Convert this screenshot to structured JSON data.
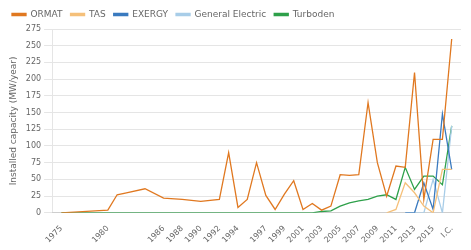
{
  "chart_data": {
    "type": "line",
    "ylabel": "Installed capacity (MW/year)",
    "series": [
      {
        "name": "ORMAT",
        "color": "#e07820",
        "x": [
          1975,
          1980,
          1981,
          1982,
          1984,
          1986,
          1988,
          1990,
          1992,
          1993,
          1994,
          1995,
          1996,
          1997,
          1998,
          1999,
          2000,
          2001,
          2002,
          2003,
          2004,
          2005,
          2006,
          2007,
          2008,
          2009,
          2010,
          2011,
          2012,
          2013,
          2014,
          2015,
          2016,
          2017
        ],
        "values": [
          0,
          4,
          27,
          30,
          36,
          22,
          20,
          17,
          20,
          90,
          8,
          20,
          75,
          26,
          5,
          28,
          48,
          5,
          14,
          4,
          10,
          57,
          56,
          57,
          165,
          75,
          25,
          70,
          68,
          210,
          20,
          110,
          110,
          260
        ]
      },
      {
        "name": "TAS",
        "color": "#f5c07a",
        "x": [
          2010,
          2011,
          2012,
          2013,
          2014,
          2015,
          2016,
          2017
        ],
        "values": [
          0,
          5,
          45,
          30,
          10,
          0,
          65,
          65
        ]
      },
      {
        "name": "EXERGY",
        "color": "#3a7abf",
        "x": [
          2012,
          2013,
          2014,
          2015,
          2016,
          2017
        ],
        "values": [
          0,
          0,
          45,
          5,
          148,
          65
        ]
      },
      {
        "name": "General Electric",
        "color": "#a8cde8",
        "x": [
          2012,
          2013,
          2014,
          2015,
          2016,
          2017
        ],
        "values": [
          0,
          0,
          0,
          50,
          0,
          130
        ]
      },
      {
        "name": "Turboden",
        "color": "#2ea04a",
        "x": [
          1975,
          1980,
          1982,
          1984,
          1986,
          1988,
          1990,
          1992,
          1994,
          1996,
          1998,
          2000,
          2001,
          2002,
          2003,
          2004,
          2005,
          2006,
          2007,
          2008,
          2009,
          2010,
          2011,
          2012,
          2013,
          2014,
          2015,
          2016,
          2017
        ],
        "values": [
          0,
          0,
          0,
          0,
          0,
          0,
          0,
          0,
          0,
          0,
          0,
          0,
          0,
          0,
          2,
          3,
          10,
          15,
          18,
          20,
          25,
          27,
          20,
          68,
          35,
          55,
          55,
          42,
          130
        ]
      }
    ],
    "xlim": [
      1974,
      2018
    ],
    "xticks": [
      1975,
      1980,
      1986,
      1988,
      1990,
      1992,
      1994,
      1997,
      1999,
      2001,
      2003,
      2005,
      2007,
      2009,
      2011,
      2013,
      2015,
      {
        "value": 2017,
        "label": "I.C."
      }
    ],
    "ylim": [
      0,
      275
    ],
    "yticks": [
      0,
      25,
      50,
      75,
      100,
      125,
      150,
      175,
      200,
      225,
      250,
      275
    ],
    "grid": "y",
    "legend": "upper left"
  }
}
